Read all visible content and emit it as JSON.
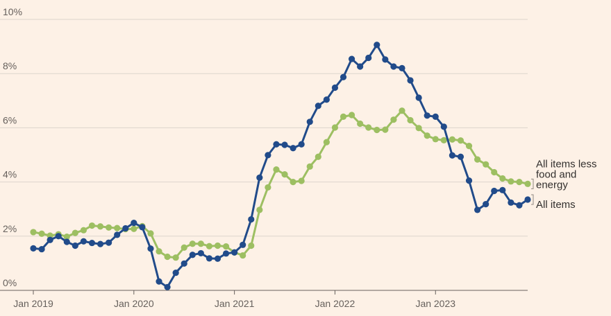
{
  "chart_data": {
    "type": "line",
    "title": "",
    "xlabel": "",
    "ylabel": "",
    "ylim": [
      0,
      10
    ],
    "yticks": [
      0,
      2,
      4,
      6,
      8,
      10
    ],
    "ytick_labels": [
      "0%",
      "2%",
      "4%",
      "6%",
      "8%",
      "10%"
    ],
    "x_range": [
      "2019-01",
      "2023-12"
    ],
    "xticks": [
      "2019-01",
      "2020-01",
      "2021-01",
      "2022-01",
      "2023-01"
    ],
    "xtick_labels": [
      "Jan 2019",
      "Jan 2020",
      "Jan 2021",
      "Jan 2022",
      "Jan 2023"
    ],
    "grid": "horizontal",
    "legend": "right end labels",
    "x": [
      "2019-01",
      "2019-02",
      "2019-03",
      "2019-04",
      "2019-05",
      "2019-06",
      "2019-07",
      "2019-08",
      "2019-09",
      "2019-10",
      "2019-11",
      "2019-12",
      "2020-01",
      "2020-02",
      "2020-03",
      "2020-04",
      "2020-05",
      "2020-06",
      "2020-07",
      "2020-08",
      "2020-09",
      "2020-10",
      "2020-11",
      "2020-12",
      "2021-01",
      "2021-02",
      "2021-03",
      "2021-04",
      "2021-05",
      "2021-06",
      "2021-07",
      "2021-08",
      "2021-09",
      "2021-10",
      "2021-11",
      "2021-12",
      "2022-01",
      "2022-02",
      "2022-03",
      "2022-04",
      "2022-05",
      "2022-06",
      "2022-07",
      "2022-08",
      "2022-09",
      "2022-10",
      "2022-11",
      "2022-12",
      "2023-01",
      "2023-02",
      "2023-03",
      "2023-04",
      "2023-05",
      "2023-06",
      "2023-07",
      "2023-08",
      "2023-09",
      "2023-10",
      "2023-11",
      "2023-12"
    ],
    "series": [
      {
        "name": "All items",
        "label_lines": [
          "All items"
        ],
        "color": "#214b8a",
        "values": [
          1.55,
          1.52,
          1.86,
          2.0,
          1.79,
          1.65,
          1.81,
          1.75,
          1.71,
          1.76,
          2.05,
          2.29,
          2.49,
          2.33,
          1.54,
          0.33,
          0.12,
          0.65,
          0.99,
          1.31,
          1.37,
          1.18,
          1.17,
          1.36,
          1.4,
          1.68,
          2.62,
          4.16,
          4.99,
          5.39,
          5.37,
          5.25,
          5.39,
          6.22,
          6.81,
          7.04,
          7.48,
          7.87,
          8.54,
          8.26,
          8.58,
          9.06,
          8.52,
          8.26,
          8.2,
          7.75,
          7.11,
          6.45,
          6.41,
          6.04,
          4.98,
          4.93,
          4.05,
          2.97,
          3.18,
          3.67,
          3.7,
          3.24,
          3.14,
          3.35
        ]
      },
      {
        "name": "All items less food and energy",
        "label_lines": [
          "All items less",
          "food and",
          "energy"
        ],
        "color": "#9dbf62",
        "values": [
          2.15,
          2.09,
          2.02,
          2.07,
          1.98,
          2.12,
          2.22,
          2.39,
          2.36,
          2.32,
          2.3,
          2.26,
          2.27,
          2.37,
          2.1,
          1.44,
          1.24,
          1.21,
          1.58,
          1.72,
          1.72,
          1.63,
          1.65,
          1.62,
          1.4,
          1.29,
          1.65,
          2.97,
          3.8,
          4.46,
          4.28,
          4.0,
          4.04,
          4.57,
          4.93,
          5.47,
          6.01,
          6.41,
          6.47,
          6.15,
          6.01,
          5.92,
          5.93,
          6.3,
          6.63,
          6.28,
          5.99,
          5.71,
          5.58,
          5.54,
          5.57,
          5.53,
          5.33,
          4.83,
          4.65,
          4.36,
          4.13,
          4.02,
          4.0,
          3.93
        ]
      }
    ]
  }
}
